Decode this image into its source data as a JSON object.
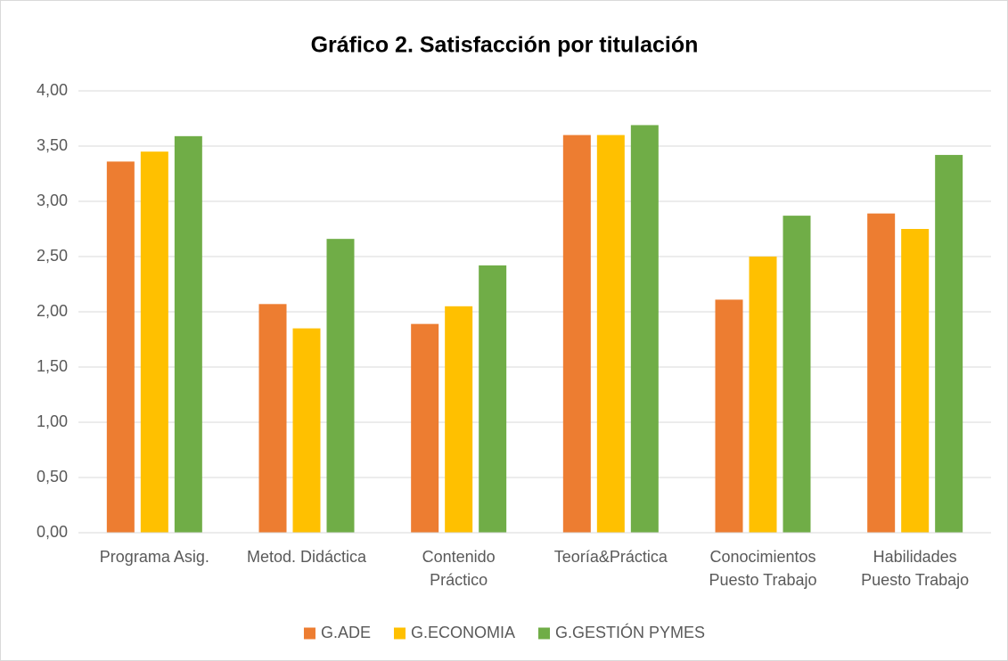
{
  "chart_data": {
    "type": "bar",
    "title": "Gráfico 2. Satisfacción por titulación",
    "categories": [
      "Programa Asig.",
      "Metod. Didáctica",
      "Contenido Práctico",
      "Teoría&Práctica",
      "Conocimientos Puesto Trabajo",
      "Habilidades Puesto Trabajo"
    ],
    "series": [
      {
        "name": "G.ADE",
        "color": "#ed7d31",
        "values": [
          3.36,
          2.07,
          1.89,
          3.6,
          2.11,
          2.89
        ]
      },
      {
        "name": "G.ECONOMIA",
        "color": "#ffc000",
        "values": [
          3.45,
          1.85,
          2.05,
          3.6,
          2.5,
          2.75
        ]
      },
      {
        "name": "G.GESTIÓN PYMES",
        "color": "#70ad47",
        "values": [
          3.59,
          2.66,
          2.42,
          3.69,
          2.87,
          3.42
        ]
      }
    ],
    "ylim": [
      0,
      4
    ],
    "yticks": [
      {
        "value": 0,
        "label": "0,00"
      },
      {
        "value": 0.5,
        "label": "0,50"
      },
      {
        "value": 1,
        "label": "1,00"
      },
      {
        "value": 1.5,
        "label": "1,50"
      },
      {
        "value": 2,
        "label": "2,00"
      },
      {
        "value": 2.5,
        "label": "2,50"
      },
      {
        "value": 3,
        "label": "3,00"
      },
      {
        "value": 3.5,
        "label": "3,50"
      },
      {
        "value": 4,
        "label": "4,00"
      }
    ],
    "grid": true,
    "legend": "bottom"
  }
}
